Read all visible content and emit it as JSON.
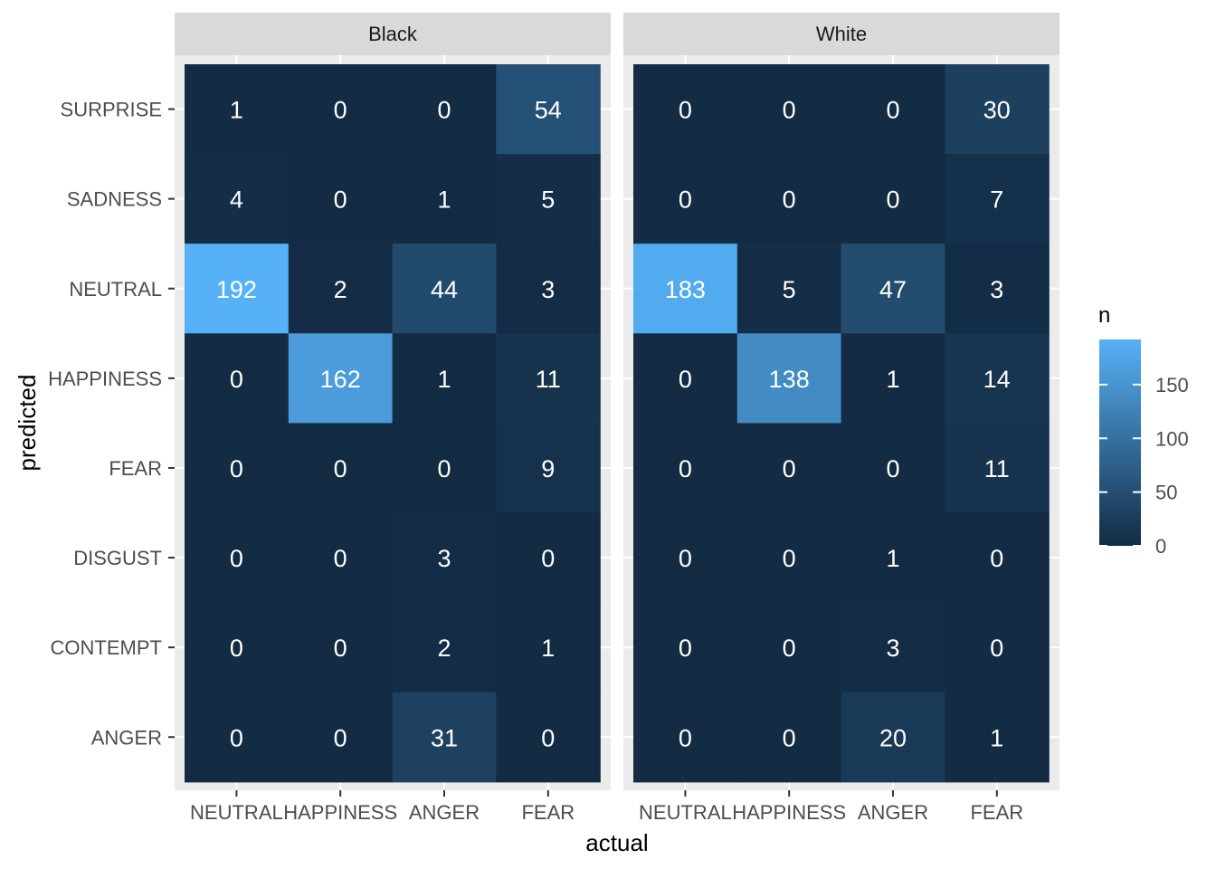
{
  "chart_data": {
    "type": "heatmap",
    "xlabel": "actual",
    "ylabel": "predicted",
    "x_categories": [
      "NEUTRAL",
      "HAPPINESS",
      "ANGER",
      "FEAR"
    ],
    "y_categories": [
      "SURPRISE",
      "SADNESS",
      "NEUTRAL",
      "HAPPINESS",
      "FEAR",
      "DISGUST",
      "CONTEMPT",
      "ANGER"
    ],
    "facets": [
      {
        "name": "Black",
        "values": [
          [
            1,
            0,
            0,
            54
          ],
          [
            4,
            0,
            1,
            5
          ],
          [
            192,
            2,
            44,
            3
          ],
          [
            0,
            162,
            1,
            11
          ],
          [
            0,
            0,
            0,
            9
          ],
          [
            0,
            0,
            3,
            0
          ],
          [
            0,
            0,
            2,
            1
          ],
          [
            0,
            0,
            31,
            0
          ]
        ]
      },
      {
        "name": "White",
        "values": [
          [
            0,
            0,
            0,
            30
          ],
          [
            0,
            0,
            0,
            7
          ],
          [
            183,
            5,
            47,
            3
          ],
          [
            0,
            138,
            1,
            14
          ],
          [
            0,
            0,
            0,
            11
          ],
          [
            0,
            0,
            1,
            0
          ],
          [
            0,
            0,
            3,
            0
          ],
          [
            0,
            0,
            20,
            1
          ]
        ]
      }
    ],
    "legend": {
      "title": "n",
      "placement": "right",
      "ticks": [
        0,
        50,
        100,
        150
      ],
      "range": [
        0,
        192
      ],
      "low_color": "#132B43",
      "high_color": "#56B1F7"
    },
    "grid": true
  }
}
